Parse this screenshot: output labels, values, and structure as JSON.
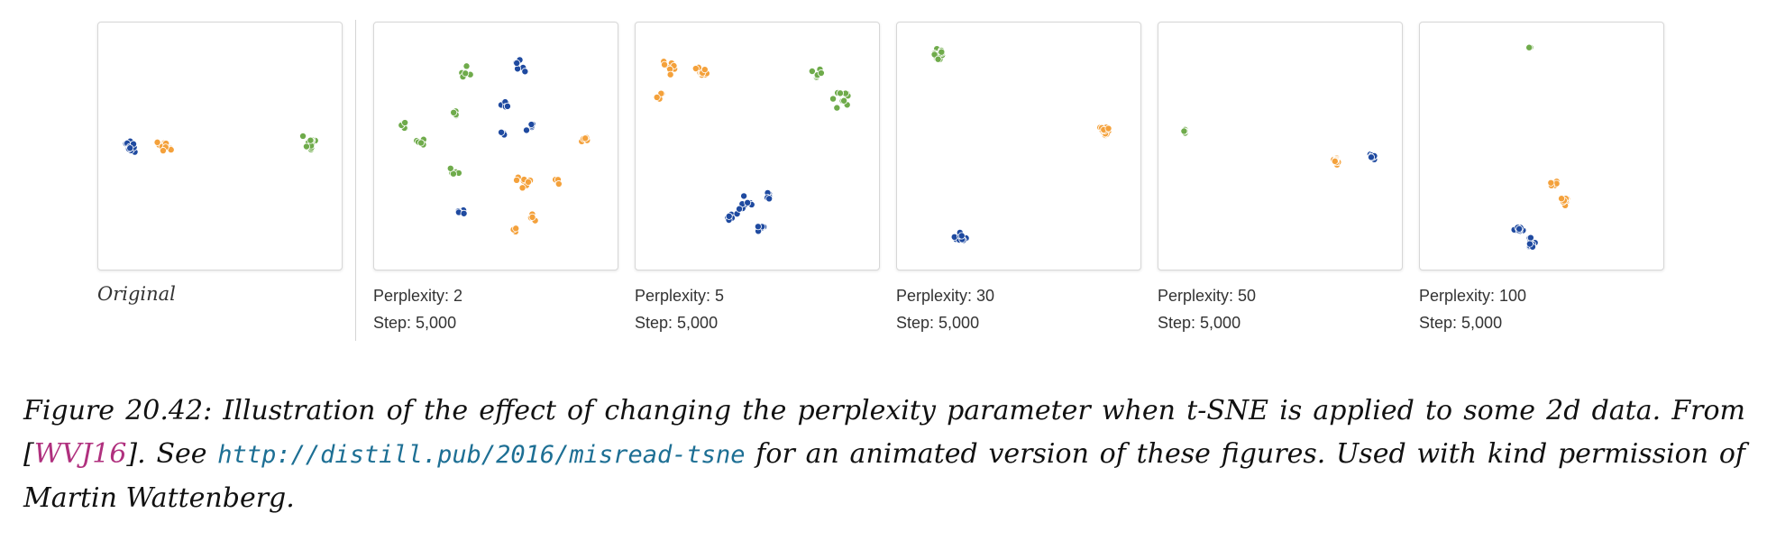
{
  "colors": {
    "blue": "#1f4aa0",
    "orange": "#f4a13b",
    "green": "#6fab4b"
  },
  "original_label": "Original",
  "caption": {
    "part1": "Figure 20.42: Illustration of the effect of changing the perplexity parameter when t-SNE is applied to some 2d data. From [",
    "cite": "WVJ16",
    "part2": "]. See ",
    "url": "http://distill.pub/2016/misread-tsne",
    "part3": " for an animated version of these figures. Used with kind permission of Martin Wattenberg."
  },
  "chart_data": [
    {
      "type": "scatter",
      "label": "Original",
      "clusters": [
        {
          "color": "blue",
          "groups": [
            [
              0.13,
              0.5,
              14,
              0.04
            ]
          ]
        },
        {
          "color": "orange",
          "groups": [
            [
              0.27,
              0.5,
              14,
              0.035
            ]
          ]
        },
        {
          "color": "green",
          "groups": [
            [
              0.87,
              0.49,
              12,
              0.035
            ]
          ]
        }
      ]
    },
    {
      "type": "scatter",
      "perplexity": "Perplexity: 2",
      "step": "Step: 5,000",
      "clusters": [
        {
          "color": "green",
          "groups": [
            [
              0.38,
              0.2,
              5,
              0.03
            ],
            [
              0.33,
              0.36,
              4,
              0.02
            ],
            [
              0.12,
              0.42,
              6,
              0.03
            ],
            [
              0.19,
              0.48,
              5,
              0.03
            ],
            [
              0.33,
              0.6,
              5,
              0.03
            ]
          ]
        },
        {
          "color": "blue",
          "groups": [
            [
              0.6,
              0.18,
              6,
              0.035
            ],
            [
              0.53,
              0.33,
              6,
              0.03
            ],
            [
              0.64,
              0.42,
              5,
              0.03
            ],
            [
              0.53,
              0.45,
              3,
              0.02
            ],
            [
              0.36,
              0.77,
              5,
              0.025
            ]
          ]
        },
        {
          "color": "orange",
          "groups": [
            [
              0.86,
              0.47,
              5,
              0.03
            ],
            [
              0.61,
              0.64,
              8,
              0.045
            ],
            [
              0.76,
              0.64,
              3,
              0.02
            ],
            [
              0.65,
              0.79,
              5,
              0.03
            ],
            [
              0.58,
              0.84,
              3,
              0.02
            ]
          ]
        }
      ]
    },
    {
      "type": "scatter",
      "perplexity": "Perplexity: 5",
      "step": "Step: 5,000",
      "clusters": [
        {
          "color": "orange",
          "groups": [
            [
              0.14,
              0.18,
              8,
              0.04
            ],
            [
              0.27,
              0.2,
              10,
              0.04
            ],
            [
              0.11,
              0.3,
              5,
              0.03
            ]
          ]
        },
        {
          "color": "green",
          "groups": [
            [
              0.75,
              0.2,
              6,
              0.04
            ],
            [
              0.85,
              0.31,
              10,
              0.045
            ]
          ]
        },
        {
          "color": "blue",
          "groups": [
            [
              0.39,
              0.79,
              6,
              0.035
            ],
            [
              0.45,
              0.73,
              8,
              0.04
            ],
            [
              0.52,
              0.83,
              5,
              0.03
            ],
            [
              0.54,
              0.7,
              6,
              0.035
            ]
          ]
        }
      ]
    },
    {
      "type": "scatter",
      "perplexity": "Perplexity: 30",
      "step": "Step: 5,000",
      "clusters": [
        {
          "color": "green",
          "groups": [
            [
              0.17,
              0.13,
              20,
              0.03
            ]
          ]
        },
        {
          "color": "orange",
          "groups": [
            [
              0.85,
              0.44,
              20,
              0.03
            ]
          ]
        },
        {
          "color": "blue",
          "groups": [
            [
              0.26,
              0.87,
              20,
              0.03
            ]
          ]
        }
      ]
    },
    {
      "type": "scatter",
      "perplexity": "Perplexity: 50",
      "step": "Step: 5,000",
      "clusters": [
        {
          "color": "green",
          "groups": [
            [
              0.11,
              0.44,
              6,
              0.012
            ]
          ]
        },
        {
          "color": "orange",
          "groups": [
            [
              0.73,
              0.56,
              10,
              0.018
            ]
          ]
        },
        {
          "color": "blue",
          "groups": [
            [
              0.88,
              0.54,
              10,
              0.02
            ]
          ]
        }
      ]
    },
    {
      "type": "scatter",
      "perplexity": "Perplexity: 100",
      "step": "Step: 5,000",
      "clusters": [
        {
          "color": "green",
          "groups": [
            [
              0.45,
              0.1,
              3,
              0.008
            ]
          ]
        },
        {
          "color": "orange",
          "groups": [
            [
              0.55,
              0.65,
              8,
              0.025
            ],
            [
              0.59,
              0.72,
              8,
              0.025
            ]
          ]
        },
        {
          "color": "blue",
          "groups": [
            [
              0.4,
              0.84,
              10,
              0.03
            ],
            [
              0.46,
              0.89,
              10,
              0.03
            ]
          ]
        }
      ]
    }
  ]
}
